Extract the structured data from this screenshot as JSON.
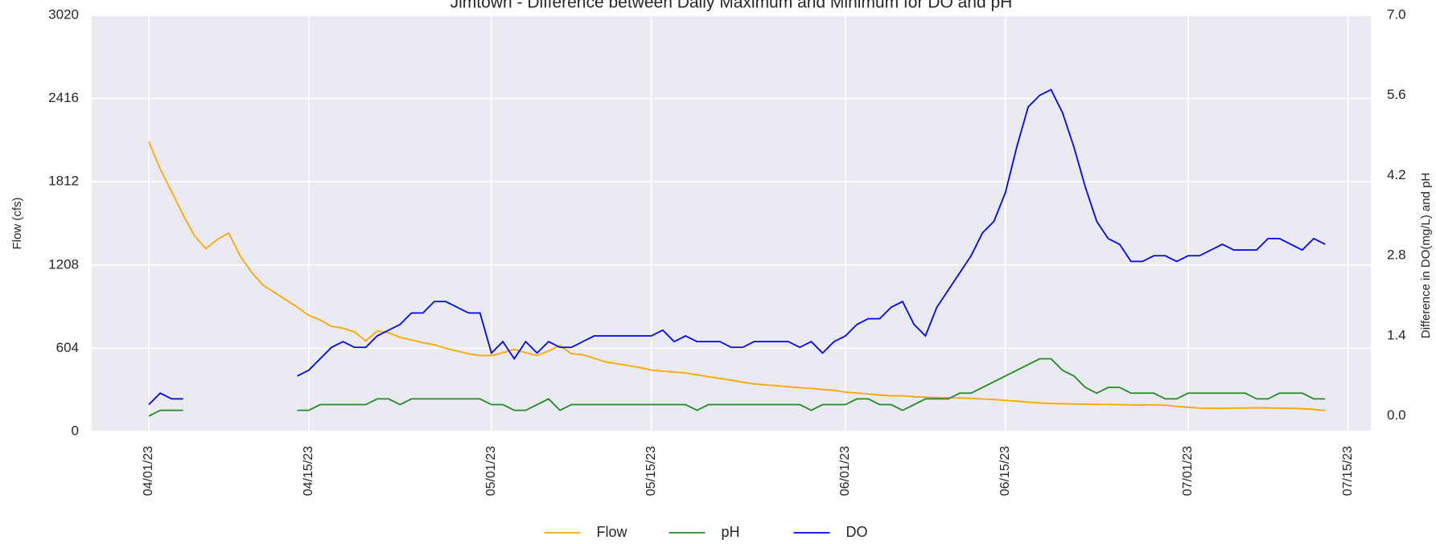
{
  "chart_data": {
    "type": "line",
    "title": "Jimtown - Difference between Daily Maximum and Minimum for DO and pH",
    "ylabel": "Flow (cfs)",
    "y2label": "Difference in DO(mg/L) and pH",
    "x": [
      "2023-04-01",
      "2023-04-02",
      "2023-04-03",
      "2023-04-04",
      "2023-04-05",
      "2023-04-06",
      "2023-04-07",
      "2023-04-08",
      "2023-04-09",
      "2023-04-10",
      "2023-04-11",
      "2023-04-12",
      "2023-04-13",
      "2023-04-14",
      "2023-04-15",
      "2023-04-16",
      "2023-04-17",
      "2023-04-18",
      "2023-04-19",
      "2023-04-20",
      "2023-04-21",
      "2023-04-22",
      "2023-04-23",
      "2023-04-24",
      "2023-04-25",
      "2023-04-26",
      "2023-04-27",
      "2023-04-28",
      "2023-04-29",
      "2023-04-30",
      "2023-05-01",
      "2023-05-02",
      "2023-05-03",
      "2023-05-04",
      "2023-05-05",
      "2023-05-06",
      "2023-05-07",
      "2023-05-08",
      "2023-05-09",
      "2023-05-10",
      "2023-05-11",
      "2023-05-12",
      "2023-05-13",
      "2023-05-14",
      "2023-05-15",
      "2023-05-16",
      "2023-05-17",
      "2023-05-18",
      "2023-05-19",
      "2023-05-20",
      "2023-05-21",
      "2023-05-22",
      "2023-05-23",
      "2023-05-24",
      "2023-05-25",
      "2023-05-26",
      "2023-05-27",
      "2023-05-28",
      "2023-05-29",
      "2023-05-30",
      "2023-05-31",
      "2023-06-01",
      "2023-06-02",
      "2023-06-03",
      "2023-06-04",
      "2023-06-05",
      "2023-06-06",
      "2023-06-07",
      "2023-06-08",
      "2023-06-09",
      "2023-06-10",
      "2023-06-11",
      "2023-06-12",
      "2023-06-13",
      "2023-06-14",
      "2023-06-15",
      "2023-06-16",
      "2023-06-17",
      "2023-06-18",
      "2023-06-19",
      "2023-06-20",
      "2023-06-21",
      "2023-06-22",
      "2023-06-23",
      "2023-06-24",
      "2023-06-25",
      "2023-06-26",
      "2023-06-27",
      "2023-06-28",
      "2023-06-29",
      "2023-06-30",
      "2023-07-01",
      "2023-07-02",
      "2023-07-03",
      "2023-07-04",
      "2023-07-05",
      "2023-07-06",
      "2023-07-07",
      "2023-07-08",
      "2023-07-09",
      "2023-07-10",
      "2023-07-11",
      "2023-07-12",
      "2023-07-13"
    ],
    "series": [
      {
        "name": "Flow",
        "color": "#ffa500",
        "axis": "y",
        "values": [
          2104,
          1905,
          1740,
          1573,
          1420,
          1327,
          1393,
          1440,
          1274,
          1155,
          1062,
          1009,
          956,
          902,
          843,
          810,
          763,
          750,
          723,
          657,
          730,
          717,
          683,
          664,
          644,
          630,
          604,
          584,
          564,
          551,
          551,
          571,
          597,
          571,
          551,
          584,
          624,
          564,
          557,
          531,
          504,
          491,
          478,
          464,
          445,
          438,
          431,
          425,
          411,
          398,
          385,
          372,
          358,
          345,
          338,
          332,
          325,
          318,
          312,
          305,
          299,
          285,
          279,
          272,
          265,
          259,
          259,
          252,
          249,
          246,
          245,
          243,
          240,
          236,
          232,
          226,
          220,
          213,
          207,
          203,
          201,
          200,
          198,
          197,
          196,
          195,
          193,
          192,
          194,
          190,
          182,
          176,
          170,
          168,
          168,
          170,
          171,
          172,
          171,
          170,
          168,
          165,
          160,
          152
        ]
      },
      {
        "name": "pH",
        "color": "#228b22",
        "axis": "y2",
        "values": [
          0.0,
          0.1,
          0.1,
          0.1,
          null,
          null,
          null,
          null,
          null,
          null,
          null,
          null,
          null,
          0.1,
          0.1,
          0.2,
          0.2,
          0.2,
          0.2,
          0.2,
          0.3,
          0.3,
          0.2,
          0.3,
          0.3,
          0.3,
          0.3,
          0.3,
          0.3,
          0.3,
          0.2,
          0.2,
          0.1,
          0.1,
          0.2,
          0.3,
          0.1,
          0.2,
          0.2,
          0.2,
          0.2,
          0.2,
          0.2,
          0.2,
          0.2,
          0.2,
          0.2,
          0.2,
          0.1,
          0.2,
          0.2,
          0.2,
          0.2,
          0.2,
          0.2,
          0.2,
          0.2,
          0.2,
          0.1,
          0.2,
          0.2,
          0.2,
          0.3,
          0.3,
          0.2,
          0.2,
          0.1,
          0.2,
          0.3,
          0.3,
          0.3,
          0.4,
          0.4,
          0.5,
          0.6,
          0.7,
          0.8,
          0.9,
          1.0,
          1.0,
          0.8,
          0.7,
          0.5,
          0.4,
          0.5,
          0.5,
          0.4,
          0.4,
          0.4,
          0.3,
          0.3,
          0.4,
          0.4,
          0.4,
          0.4,
          0.4,
          0.4,
          0.3,
          0.3,
          0.4,
          0.4,
          0.4,
          0.3,
          0.3
        ]
      },
      {
        "name": "DO",
        "color": "#0000ff",
        "axis": "y2",
        "values": [
          0.2,
          0.4,
          0.3,
          0.3,
          null,
          null,
          null,
          null,
          null,
          null,
          null,
          null,
          null,
          0.7,
          0.8,
          1.0,
          1.2,
          1.3,
          1.2,
          1.2,
          1.4,
          1.5,
          1.6,
          1.8,
          1.8,
          2.0,
          2.0,
          1.9,
          1.8,
          1.8,
          1.1,
          1.3,
          1.0,
          1.3,
          1.1,
          1.3,
          1.2,
          1.2,
          1.3,
          1.4,
          1.4,
          1.4,
          1.4,
          1.4,
          1.4,
          1.5,
          1.3,
          1.4,
          1.3,
          1.3,
          1.3,
          1.2,
          1.2,
          1.3,
          1.3,
          1.3,
          1.3,
          1.2,
          1.3,
          1.1,
          1.3,
          1.4,
          1.6,
          1.7,
          1.7,
          1.9,
          2.0,
          1.6,
          1.4,
          1.9,
          2.2,
          2.5,
          2.8,
          3.2,
          3.4,
          3.9,
          4.7,
          5.4,
          5.6,
          5.7,
          5.3,
          4.7,
          4.0,
          3.4,
          3.1,
          3.0,
          2.7,
          2.7,
          2.8,
          2.8,
          2.7,
          2.8,
          2.8,
          2.9,
          3.0,
          2.9,
          2.9,
          2.9,
          3.1,
          3.1,
          3.0,
          2.9,
          3.1,
          3.0
        ]
      }
    ],
    "xlim": [
      "2023-03-27",
      "2023-07-17"
    ],
    "xticks": [
      {
        "value": "2023-04-01",
        "label": "04/01/23"
      },
      {
        "value": "2023-04-15",
        "label": "04/15/23"
      },
      {
        "value": "2023-05-01",
        "label": "05/01/23"
      },
      {
        "value": "2023-05-15",
        "label": "05/15/23"
      },
      {
        "value": "2023-06-01",
        "label": "06/01/23"
      },
      {
        "value": "2023-06-15",
        "label": "06/15/23"
      },
      {
        "value": "2023-07-01",
        "label": "07/01/23"
      },
      {
        "value": "2023-07-15",
        "label": "07/15/23"
      }
    ],
    "ylim": [
      0,
      3020
    ],
    "yticks": [
      0,
      604,
      1208,
      1812,
      2416,
      3020
    ],
    "y2lim": [
      -0.27,
      7.0
    ],
    "y2ticks": [
      {
        "value": 0,
        "label": "0.0"
      },
      1.4,
      2.8,
      4.2,
      5.6,
      {
        "value": 7,
        "label": "7.0"
      }
    ],
    "grid": true,
    "legend": "bottom"
  }
}
